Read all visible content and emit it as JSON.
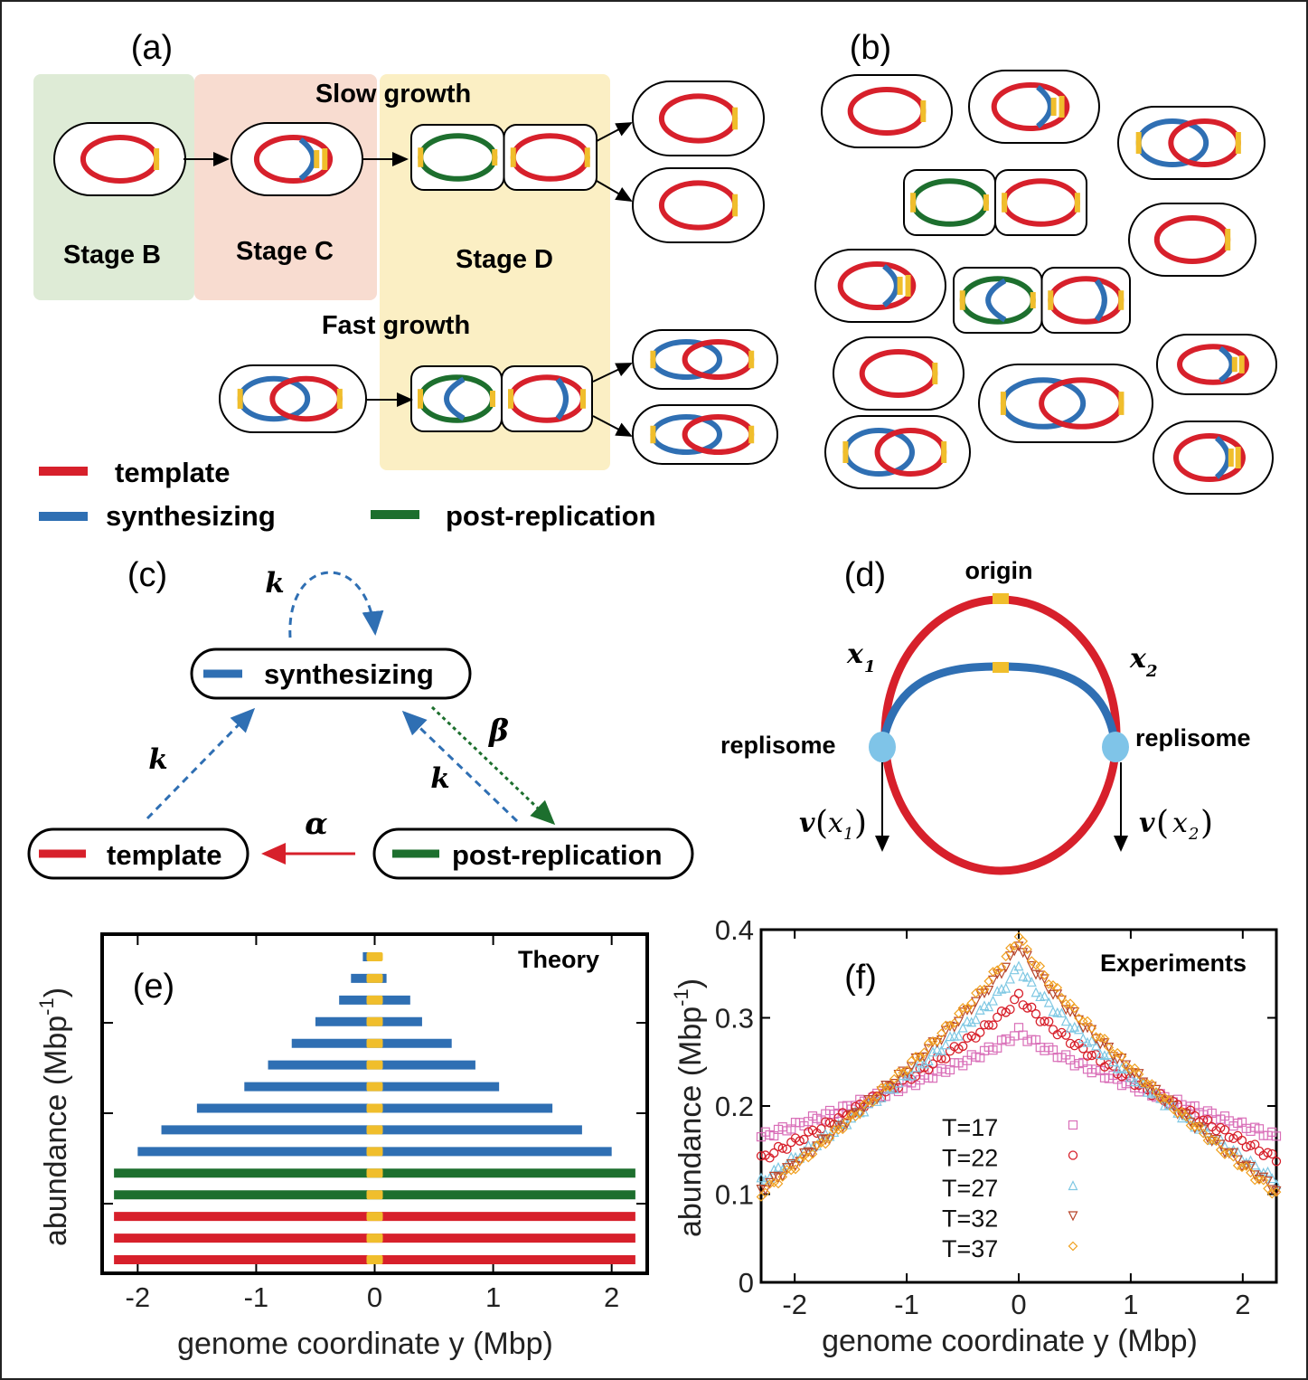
{
  "colors": {
    "template": "#d7202b",
    "synthesizing": "#2f6fb3",
    "post_replication": "#1d6f2e",
    "origin": "#f0be2c",
    "replisome": "#7fc4e8",
    "stage_b_bg": "#deebd6",
    "stage_c_bg": "#f8dcd0",
    "stage_d_bg": "#fbefc4",
    "exp_T17": "#d96fb8",
    "exp_T22": "#d7202b",
    "exp_T27": "#7fc8e3",
    "exp_T32": "#b8452a",
    "exp_T37": "#f0a020"
  },
  "panel_a": {
    "label": "(a)",
    "stage_b": "Stage B",
    "stage_c": "Stage C",
    "stage_d": "Stage D",
    "slow_growth": "Slow growth",
    "fast_growth": "Fast growth"
  },
  "panel_b": {
    "label": "(b)"
  },
  "legend": {
    "template": "template",
    "synthesizing": "synthesizing",
    "post_replication": "post-replication"
  },
  "panel_c": {
    "label": "(c)",
    "synthesizing": "synthesizing",
    "template": "template",
    "post_replication": "post-replication",
    "rate_k": "k",
    "rate_alpha": "α",
    "rate_beta": "β"
  },
  "panel_d": {
    "label": "(d)",
    "origin": "origin",
    "replisome": "replisome",
    "x": "x",
    "sub1": "1",
    "sub2": "2",
    "v": "v"
  },
  "chart_data": [
    {
      "type": "bar",
      "panel": "(e)",
      "annotation": "Theory",
      "xlabel": "genome coordinate y (Mbp)",
      "ylabel": "abundance (Mbp",
      "ylabel_sup": "-1",
      "ylabel_close": ")",
      "xlim": [
        -2.3,
        2.3
      ],
      "xticks": [
        "-2",
        "-1",
        "0",
        "1",
        "2"
      ],
      "xtick_values": [
        -2,
        -1,
        0,
        1,
        2
      ],
      "bars": [
        {
          "kind": "template",
          "left": -2.2,
          "right": 2.2
        },
        {
          "kind": "template",
          "left": -2.2,
          "right": 2.2
        },
        {
          "kind": "template",
          "left": -2.2,
          "right": 2.2
        },
        {
          "kind": "post-replication",
          "left": -2.2,
          "right": 2.2
        },
        {
          "kind": "post-replication",
          "left": -2.2,
          "right": 2.2
        },
        {
          "kind": "synthesizing",
          "left": -2.0,
          "right": 2.0
        },
        {
          "kind": "synthesizing",
          "left": -1.8,
          "right": 1.75
        },
        {
          "kind": "synthesizing",
          "left": -1.5,
          "right": 1.5
        },
        {
          "kind": "synthesizing",
          "left": -1.1,
          "right": 1.05
        },
        {
          "kind": "synthesizing",
          "left": -0.9,
          "right": 0.85
        },
        {
          "kind": "synthesizing",
          "left": -0.7,
          "right": 0.65
        },
        {
          "kind": "synthesizing",
          "left": -0.5,
          "right": 0.4
        },
        {
          "kind": "synthesizing",
          "left": -0.3,
          "right": 0.3
        },
        {
          "kind": "synthesizing",
          "left": -0.2,
          "right": 0.1
        },
        {
          "kind": "synthesizing",
          "left": -0.1,
          "right": 0.02
        }
      ]
    },
    {
      "type": "scatter",
      "panel": "(f)",
      "annotation": "Experiments",
      "xlabel": "genome coordinate y (Mbp)",
      "ylabel": "abundance (Mbp",
      "ylabel_sup": "-1",
      "ylabel_close": ")",
      "xlim": [
        -2.3,
        2.3
      ],
      "ylim": [
        0,
        0.4
      ],
      "xticks": [
        "-2",
        "-1",
        "0",
        "1",
        "2"
      ],
      "xtick_values": [
        -2,
        -1,
        0,
        1,
        2
      ],
      "yticks": [
        "0",
        "0.1",
        "0.2",
        "0.3",
        "0.4"
      ],
      "ytick_values": [
        0,
        0.1,
        0.2,
        0.3,
        0.4
      ],
      "series": [
        {
          "name": "T=17",
          "marker": "square",
          "color_key": "exp_T17",
          "peak": 0.285,
          "edge": 0.165
        },
        {
          "name": "T=22",
          "marker": "circle",
          "color_key": "exp_T22",
          "peak": 0.325,
          "edge": 0.14
        },
        {
          "name": "T=27",
          "marker": "triangle",
          "color_key": "exp_T27",
          "peak": 0.36,
          "edge": 0.115
        },
        {
          "name": "T=32",
          "marker": "triangle-down",
          "color_key": "exp_T32",
          "peak": 0.385,
          "edge": 0.105
        },
        {
          "name": "T=37",
          "marker": "diamond",
          "color_key": "exp_T37",
          "peak": 0.395,
          "edge": 0.1
        }
      ]
    }
  ]
}
